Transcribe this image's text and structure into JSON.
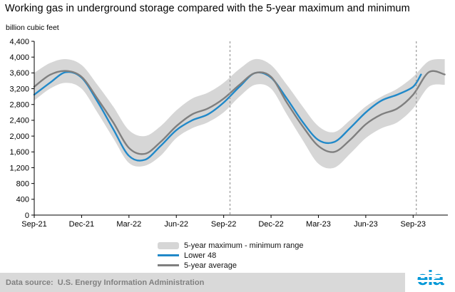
{
  "page": {
    "title": "Working gas in underground storage compared with the 5-year maximum and minimum",
    "unit_label": "billion cubic feet"
  },
  "legend": {
    "range_label": "5-year maximum - minimum range",
    "lower48_label": "Lower 48",
    "avg_label": "5-year average"
  },
  "footer": {
    "data_source": "Data source:  U.S. Energy Information Administration",
    "logo_text": "eia"
  },
  "chart_data": {
    "type": "area",
    "title": "Working gas in underground storage compared with the 5-year maximum and minimum",
    "ylabel": "billion cubic feet",
    "xlabel": "",
    "ylim": [
      0,
      4400
    ],
    "ytick_step": 400,
    "xlim": [
      0,
      26.2
    ],
    "grid": false,
    "legend_position": "bottom",
    "xticks": [
      {
        "pos": 0,
        "label": "Sep-21"
      },
      {
        "pos": 3,
        "label": "Dec-21"
      },
      {
        "pos": 6,
        "label": "Mar-22"
      },
      {
        "pos": 9,
        "label": "Jun-22"
      },
      {
        "pos": 12,
        "label": "Sep-22"
      },
      {
        "pos": 15,
        "label": "Dec-22"
      },
      {
        "pos": 18,
        "label": "Mar-23"
      },
      {
        "pos": 21,
        "label": "Jun-23"
      },
      {
        "pos": 24,
        "label": "Sep-23"
      }
    ],
    "dashed_vlines": [
      12.4,
      24.2
    ],
    "colors": {
      "band": "#d6d6d6",
      "lower48": "#2189c9",
      "average": "#7f7f7f",
      "dashed": "#999999",
      "axis": "#000000"
    },
    "band": {
      "name": "5-year maximum - minimum range",
      "x": [
        0,
        1,
        2,
        3,
        4,
        5,
        6,
        7,
        8,
        9,
        10,
        11,
        12,
        13,
        14,
        15,
        16,
        17,
        18,
        19,
        20,
        21,
        22,
        23,
        24,
        25,
        26
      ],
      "max": [
        3600,
        3850,
        3950,
        3800,
        3300,
        2750,
        2150,
        2000,
        2250,
        2650,
        2950,
        3100,
        3350,
        3700,
        3950,
        3800,
        3300,
        2750,
        2250,
        2100,
        2400,
        2750,
        3000,
        3200,
        3500,
        3900,
        3950
      ],
      "min": [
        2900,
        3200,
        3350,
        3200,
        2600,
        1950,
        1320,
        1250,
        1500,
        1950,
        2200,
        2350,
        2600,
        3000,
        3300,
        3200,
        2550,
        1900,
        1300,
        1200,
        1550,
        1950,
        2200,
        2350,
        2700,
        3250,
        3300
      ]
    },
    "series": [
      {
        "name": "Lower 48",
        "color_key": "lower48",
        "x": [
          0,
          1,
          2,
          3,
          4,
          5,
          6,
          7,
          8,
          9,
          10,
          11,
          12,
          13,
          14,
          15,
          16,
          17,
          18,
          19,
          20,
          21,
          22,
          23,
          24,
          24.5
        ],
        "values": [
          3050,
          3350,
          3620,
          3480,
          2880,
          2180,
          1500,
          1400,
          1750,
          2150,
          2400,
          2550,
          2850,
          3250,
          3600,
          3480,
          2950,
          2360,
          1900,
          1850,
          2200,
          2600,
          2900,
          3050,
          3250,
          3560
        ]
      },
      {
        "name": "5-year average",
        "color_key": "average",
        "x": [
          0,
          1,
          2,
          3,
          4,
          5,
          6,
          7,
          8,
          9,
          10,
          11,
          12,
          13,
          14,
          15,
          16,
          17,
          18,
          19,
          20,
          21,
          22,
          23,
          24,
          25,
          26
        ],
        "values": [
          3250,
          3550,
          3650,
          3500,
          2950,
          2350,
          1700,
          1550,
          1850,
          2250,
          2550,
          2700,
          2950,
          3300,
          3600,
          3500,
          2850,
          2250,
          1750,
          1600,
          1900,
          2300,
          2550,
          2700,
          3050,
          3620,
          3560
        ]
      }
    ]
  }
}
